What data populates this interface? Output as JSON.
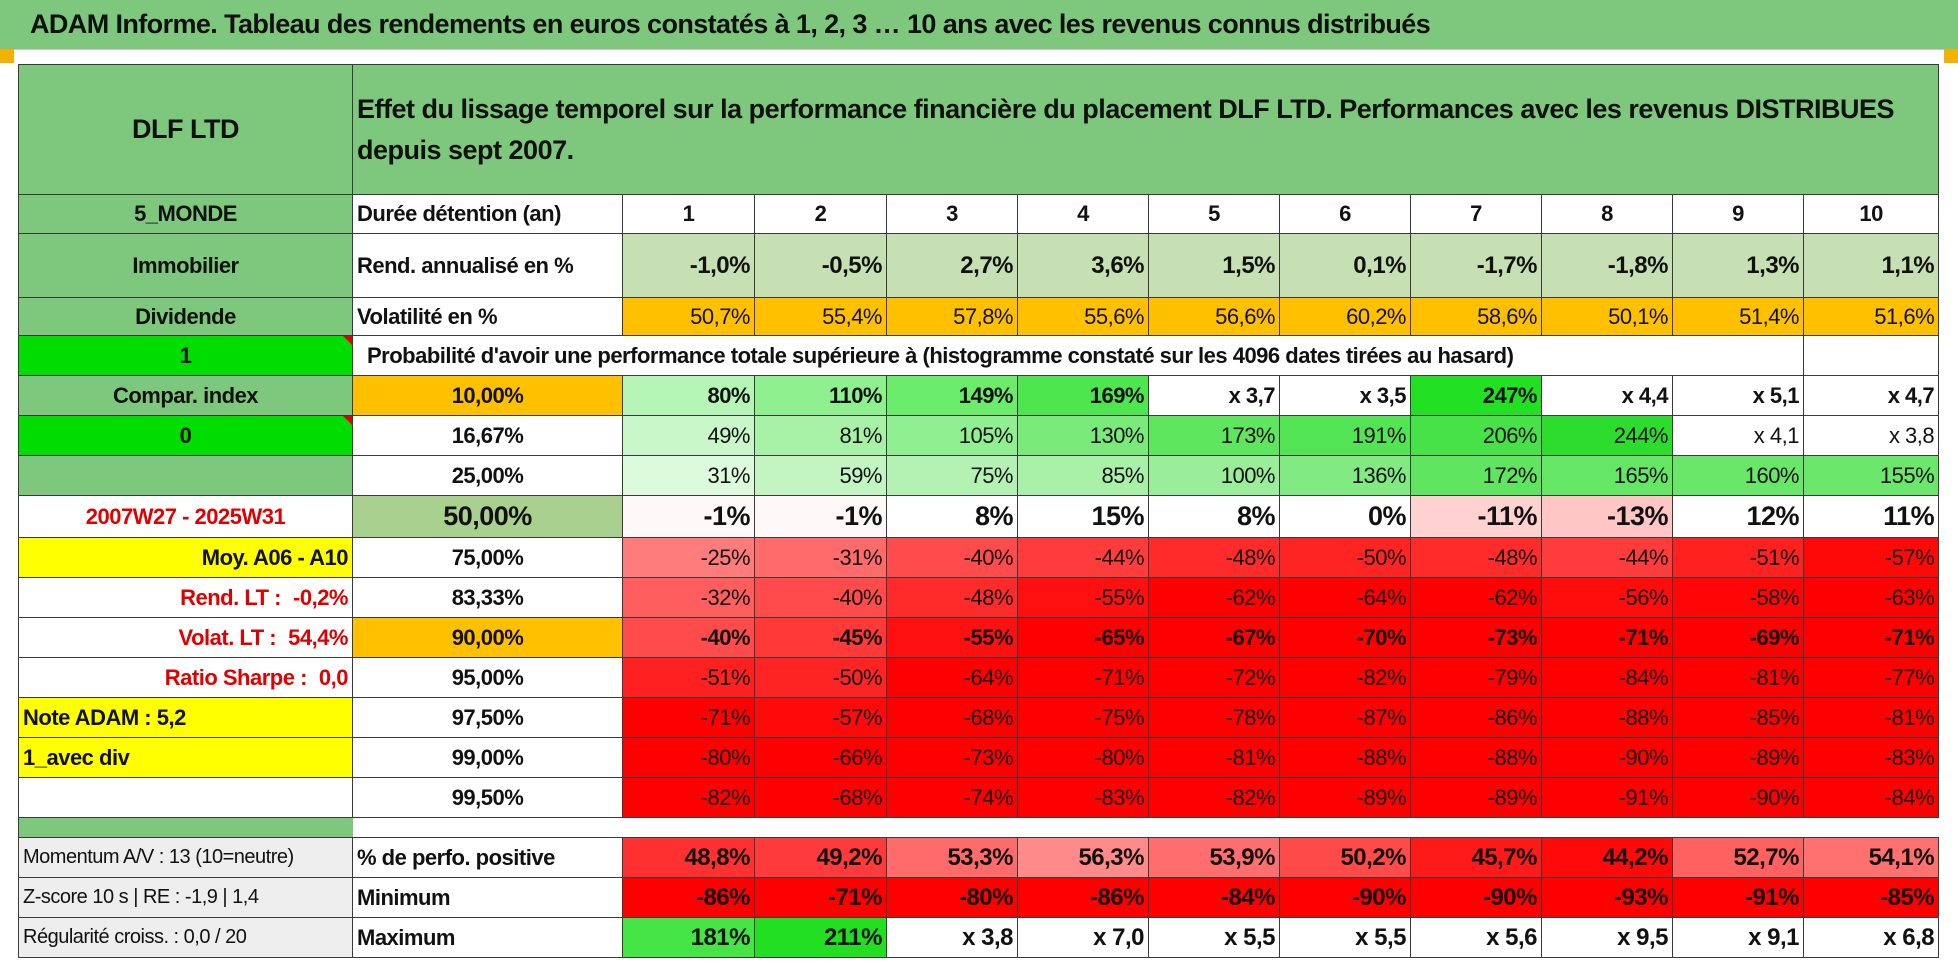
{
  "title": "ADAM Informe. Tableau des rendements en euros constatés à 1, 2, 3 … 10 ans avec les revenus connus distribués",
  "header": {
    "fund": "DLF LTD",
    "description": "Effet du lissage temporel sur la performance financière du placement DLF LTD. Performances avec les revenus DISTRIBUES depuis sept 2007."
  },
  "side": {
    "category": "5_MONDE",
    "type": "Immobilier",
    "distribution": "Dividende",
    "flag1": "1",
    "compar": "Compar. index",
    "flag2": "0",
    "blank": "",
    "period": "2007W27 - 2025W31",
    "moy": "Moy. A06 - A10",
    "rend_lt_label": "Rend. LT :",
    "rend_lt_value": "-0,2%",
    "volat_lt_label": "Volat. LT :",
    "volat_lt_value": "54,4%",
    "sharpe_label": "Ratio Sharpe :",
    "sharpe_value": "0,0",
    "note": "Note ADAM : 5,2",
    "mode": "1_avec div",
    "momentum": "Momentum A/V : 13 (10=neutre)",
    "zscore": "Z-score 10 s | RE : -1,9 | 1,4",
    "regularite": "Régularité croiss. : 0,0 / 20"
  },
  "labels": {
    "duree": "Durée détention (an)",
    "rend": "Rend. annualisé en %",
    "vol": "Volatilité en %",
    "proba": "Probabilité d'avoir une performance totale supérieure à (histogramme constaté sur les 4096 dates tirées au hasard)",
    "positive": "% de perfo. positive",
    "minimum": "Minimum",
    "maximum": "Maximum"
  },
  "years": [
    "1",
    "2",
    "3",
    "4",
    "5",
    "6",
    "7",
    "8",
    "9",
    "10"
  ],
  "rend_values": [
    "-1,0%",
    "-0,5%",
    "2,7%",
    "3,6%",
    "1,5%",
    "0,1%",
    "-1,7%",
    "-1,8%",
    "1,3%",
    "1,1%"
  ],
  "vol_values": [
    "50,7%",
    "55,4%",
    "57,8%",
    "55,6%",
    "56,6%",
    "60,2%",
    "58,6%",
    "50,1%",
    "51,4%",
    "51,6%"
  ],
  "proba_rows": [
    {
      "pct": "10,00%",
      "values": [
        "80%",
        "110%",
        "149%",
        "169%",
        "x 3,7",
        "x 3,5",
        "247%",
        "x 4,4",
        "x 5,1",
        "x 4,7"
      ]
    },
    {
      "pct": "16,67%",
      "values": [
        "49%",
        "81%",
        "105%",
        "130%",
        "173%",
        "191%",
        "206%",
        "244%",
        "x 4,1",
        "x 3,8"
      ]
    },
    {
      "pct": "25,00%",
      "values": [
        "31%",
        "59%",
        "75%",
        "85%",
        "100%",
        "136%",
        "172%",
        "165%",
        "160%",
        "155%"
      ]
    },
    {
      "pct": "50,00%",
      "values": [
        "-1%",
        "-1%",
        "8%",
        "15%",
        "8%",
        "0%",
        "-11%",
        "-13%",
        "12%",
        "11%"
      ]
    },
    {
      "pct": "75,00%",
      "values": [
        "-25%",
        "-31%",
        "-40%",
        "-44%",
        "-48%",
        "-50%",
        "-48%",
        "-44%",
        "-51%",
        "-57%"
      ]
    },
    {
      "pct": "83,33%",
      "values": [
        "-32%",
        "-40%",
        "-48%",
        "-55%",
        "-62%",
        "-64%",
        "-62%",
        "-56%",
        "-58%",
        "-63%"
      ]
    },
    {
      "pct": "90,00%",
      "values": [
        "-40%",
        "-45%",
        "-55%",
        "-65%",
        "-67%",
        "-70%",
        "-73%",
        "-71%",
        "-69%",
        "-71%"
      ]
    },
    {
      "pct": "95,00%",
      "values": [
        "-51%",
        "-50%",
        "-64%",
        "-71%",
        "-72%",
        "-82%",
        "-79%",
        "-84%",
        "-81%",
        "-77%"
      ]
    },
    {
      "pct": "97,50%",
      "values": [
        "-71%",
        "-57%",
        "-68%",
        "-75%",
        "-78%",
        "-87%",
        "-86%",
        "-88%",
        "-85%",
        "-81%"
      ]
    },
    {
      "pct": "99,00%",
      "values": [
        "-80%",
        "-66%",
        "-73%",
        "-80%",
        "-81%",
        "-88%",
        "-88%",
        "-90%",
        "-89%",
        "-83%"
      ]
    },
    {
      "pct": "99,50%",
      "values": [
        "-82%",
        "-68%",
        "-74%",
        "-83%",
        "-82%",
        "-89%",
        "-89%",
        "-91%",
        "-90%",
        "-84%"
      ]
    }
  ],
  "positive_values": [
    "48,8%",
    "49,2%",
    "53,3%",
    "56,3%",
    "53,9%",
    "50,2%",
    "45,7%",
    "44,2%",
    "52,7%",
    "54,1%"
  ],
  "min_values": [
    "-86%",
    "-71%",
    "-80%",
    "-86%",
    "-84%",
    "-90%",
    "-90%",
    "-93%",
    "-91%",
    "-85%"
  ],
  "max_values": [
    "181%",
    "211%",
    "x 3,8",
    "x 7,0",
    "x 5,5",
    "x 5,5",
    "x 5,6",
    "x 9,5",
    "x 9,1",
    "x 6,8"
  ],
  "colors": {
    "header_green": "#7ec87e",
    "bright_green": "#00dd00",
    "yellow": "#ffff00",
    "orange": "#ffc000",
    "red": "#ff0000",
    "red_text": "#e00000"
  },
  "cell_colors": {
    "rend": [
      "#c6e0b4",
      "#c6e0b4",
      "#c6e0b4",
      "#c6e0b4",
      "#c6e0b4",
      "#c6e0b4",
      "#c6e0b4",
      "#c6e0b4",
      "#c6e0b4",
      "#c6e0b4"
    ],
    "vol": [
      "#ffc000",
      "#ffc000",
      "#ffc000",
      "#ffc000",
      "#ffc000",
      "#ffc000",
      "#ffc000",
      "#ffc000",
      "#ffc000",
      "#ffc000"
    ],
    "proba": [
      [
        "#b5f5b5",
        "#8ef08e",
        "#6bec6b",
        "#4ee64e",
        "#ffffff",
        "#ffffff",
        "#22e022",
        "#ffffff",
        "#ffffff",
        "#ffffff"
      ],
      [
        "#c9f7c9",
        "#a8f2a8",
        "#90ef90",
        "#7aeb7a",
        "#5ee65e",
        "#52e452",
        "#47e247",
        "#2ddd2d",
        "#ffffff",
        "#ffffff"
      ],
      [
        "#dcfadc",
        "#c3f5c3",
        "#b4f2b4",
        "#a9f1a9",
        "#9aee9a",
        "#82ea82",
        "#5fe55f",
        "#65e665",
        "#68e768",
        "#6be86b"
      ],
      [
        "#fff8f8",
        "#fff8f8",
        "#ffffff",
        "#ffffff",
        "#ffffff",
        "#ffffff",
        "#ffd2d2",
        "#ffc6c6",
        "#ffffff",
        "#ffffff"
      ],
      [
        "#ff7c7c",
        "#ff6a6a",
        "#ff4b4b",
        "#ff3c3c",
        "#ff2a2a",
        "#ff2424",
        "#ff2a2a",
        "#ff3c3c",
        "#ff2020",
        "#ff0808"
      ],
      [
        "#ff5e5e",
        "#ff4b4b",
        "#ff2a2a",
        "#ff1010",
        "#ff0000",
        "#ff0000",
        "#ff0000",
        "#ff0d0d",
        "#ff0505",
        "#ff0000"
      ],
      [
        "#ff4b4b",
        "#ff3838",
        "#ff1010",
        "#ff0000",
        "#ff0000",
        "#ff0000",
        "#ff0000",
        "#ff0000",
        "#ff0000",
        "#ff0000"
      ],
      [
        "#ff2020",
        "#ff2424",
        "#ff0000",
        "#ff0000",
        "#ff0000",
        "#ff0000",
        "#ff0000",
        "#ff0000",
        "#ff0000",
        "#ff0000"
      ],
      [
        "#ff0000",
        "#ff0a0a",
        "#ff0000",
        "#ff0000",
        "#ff0000",
        "#ff0000",
        "#ff0000",
        "#ff0000",
        "#ff0000",
        "#ff0000"
      ],
      [
        "#ff0000",
        "#ff0000",
        "#ff0000",
        "#ff0000",
        "#ff0000",
        "#ff0000",
        "#ff0000",
        "#ff0000",
        "#ff0000",
        "#ff0000"
      ],
      [
        "#ff0000",
        "#ff0000",
        "#ff0000",
        "#ff0000",
        "#ff0000",
        "#ff0000",
        "#ff0000",
        "#ff0000",
        "#ff0000",
        "#ff0000"
      ]
    ],
    "positive": [
      "#ff3030",
      "#ff3a3a",
      "#ff6a6a",
      "#ff8a8a",
      "#ff6e6e",
      "#ff4a4a",
      "#ff1a1a",
      "#ff0a0a",
      "#ff6060",
      "#ff7070"
    ],
    "minimum": [
      "#ff0000",
      "#ff0000",
      "#ff0000",
      "#ff0000",
      "#ff0000",
      "#ff0000",
      "#ff0000",
      "#ff0000",
      "#ff0000",
      "#ff0000"
    ],
    "maximum": [
      "#44e544",
      "#22df22",
      "#ffffff",
      "#ffffff",
      "#ffffff",
      "#ffffff",
      "#ffffff",
      "#ffffff",
      "#ffffff",
      "#ffffff"
    ]
  }
}
